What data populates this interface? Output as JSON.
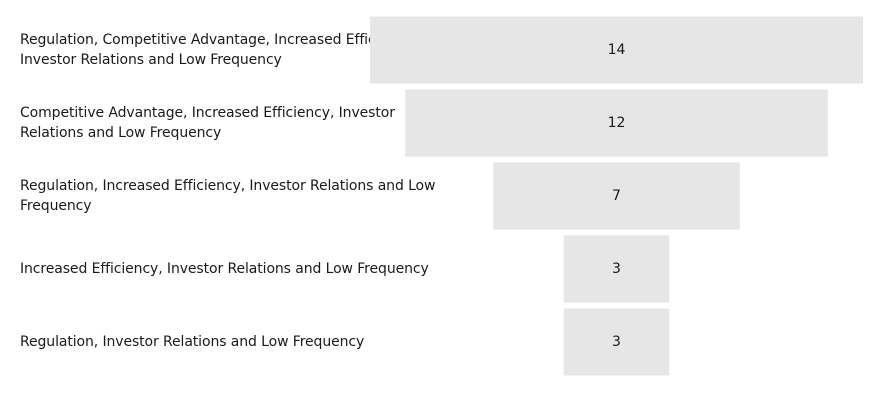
{
  "chart_data": {
    "type": "funnel",
    "categories": [
      "Regulation, Competitive Advantage, Increased Efficiency, Investor Relations and Low Frequency",
      "Competitive Advantage, Increased Efficiency, Investor Relations and Low Frequency",
      "Regulation, Increased Efficiency, Investor Relations and Low Frequency",
      "Increased Efficiency, Investor Relations and Low Frequency",
      "Regulation, Investor Relations and Low Frequency"
    ],
    "values": [
      14,
      12,
      7,
      3,
      3
    ],
    "data_labels": [
      "14",
      "12",
      "7",
      "3",
      "3"
    ],
    "bar_color": "#e6e6e6",
    "label_color": "#1a1a1a",
    "grid": false,
    "legend": "none"
  }
}
